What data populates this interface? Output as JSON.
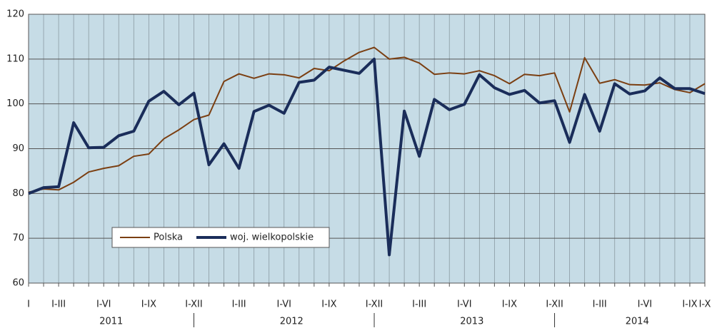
{
  "chart_data": {
    "type": "line",
    "categories": [
      "I",
      null,
      "I-III",
      null,
      null,
      "I-VI",
      null,
      null,
      "I-IX",
      null,
      null,
      "I-XII",
      null,
      null,
      "I-III",
      null,
      null,
      "I-VI",
      null,
      null,
      "I-IX",
      null,
      null,
      "I-XII",
      null,
      null,
      "I-III",
      null,
      null,
      "I-VI",
      null,
      null,
      "I-IX",
      null,
      null,
      "I-XII",
      null,
      null,
      "I-III",
      null,
      null,
      "I-VI",
      null,
      null,
      "I-IX",
      "I-X"
    ],
    "years": [
      "2011",
      "2012",
      "2013",
      "2014"
    ],
    "series": [
      {
        "name": "Polska",
        "color": "#7b3f12",
        "values": [
          80.3,
          81,
          80.8,
          82.5,
          84.8,
          85.6,
          86.2,
          88.3,
          88.8,
          92.2,
          94.2,
          96.5,
          97.5,
          105,
          106.7,
          105.7,
          106.7,
          106.5,
          105.8,
          107.9,
          107.4,
          109.6,
          111.5,
          112.6,
          110,
          110.4,
          109.1,
          106.6,
          106.9,
          106.7,
          107.4,
          106.3,
          104.5,
          106.6,
          106.3,
          106.9,
          98.2,
          110.3,
          104.6,
          105.4,
          104.3,
          104.2,
          104.7,
          103.2,
          102.5,
          104.5
        ]
      },
      {
        "name": "woj. wielkopolskie",
        "color": "#1a2d5a",
        "values": [
          80,
          81.3,
          81.5,
          95.8,
          90.2,
          90.3,
          92.9,
          93.9,
          100.6,
          102.8,
          99.8,
          102.4,
          86.4,
          91.1,
          85.6,
          98.3,
          99.7,
          97.9,
          104.8,
          105.3,
          108.2,
          107.5,
          106.8,
          110,
          66.3,
          98.4,
          88.3,
          101,
          98.7,
          99.9,
          106.5,
          103.6,
          102.1,
          103,
          100.2,
          100.7,
          91.4,
          102.1,
          93.9,
          104.5,
          102.2,
          102.9,
          105.8,
          103.4,
          103.4,
          102.3
        ]
      }
    ],
    "ylim": [
      60,
      120
    ],
    "yticks": [
      60,
      70,
      80,
      90,
      100,
      110,
      120
    ],
    "grid": true
  }
}
